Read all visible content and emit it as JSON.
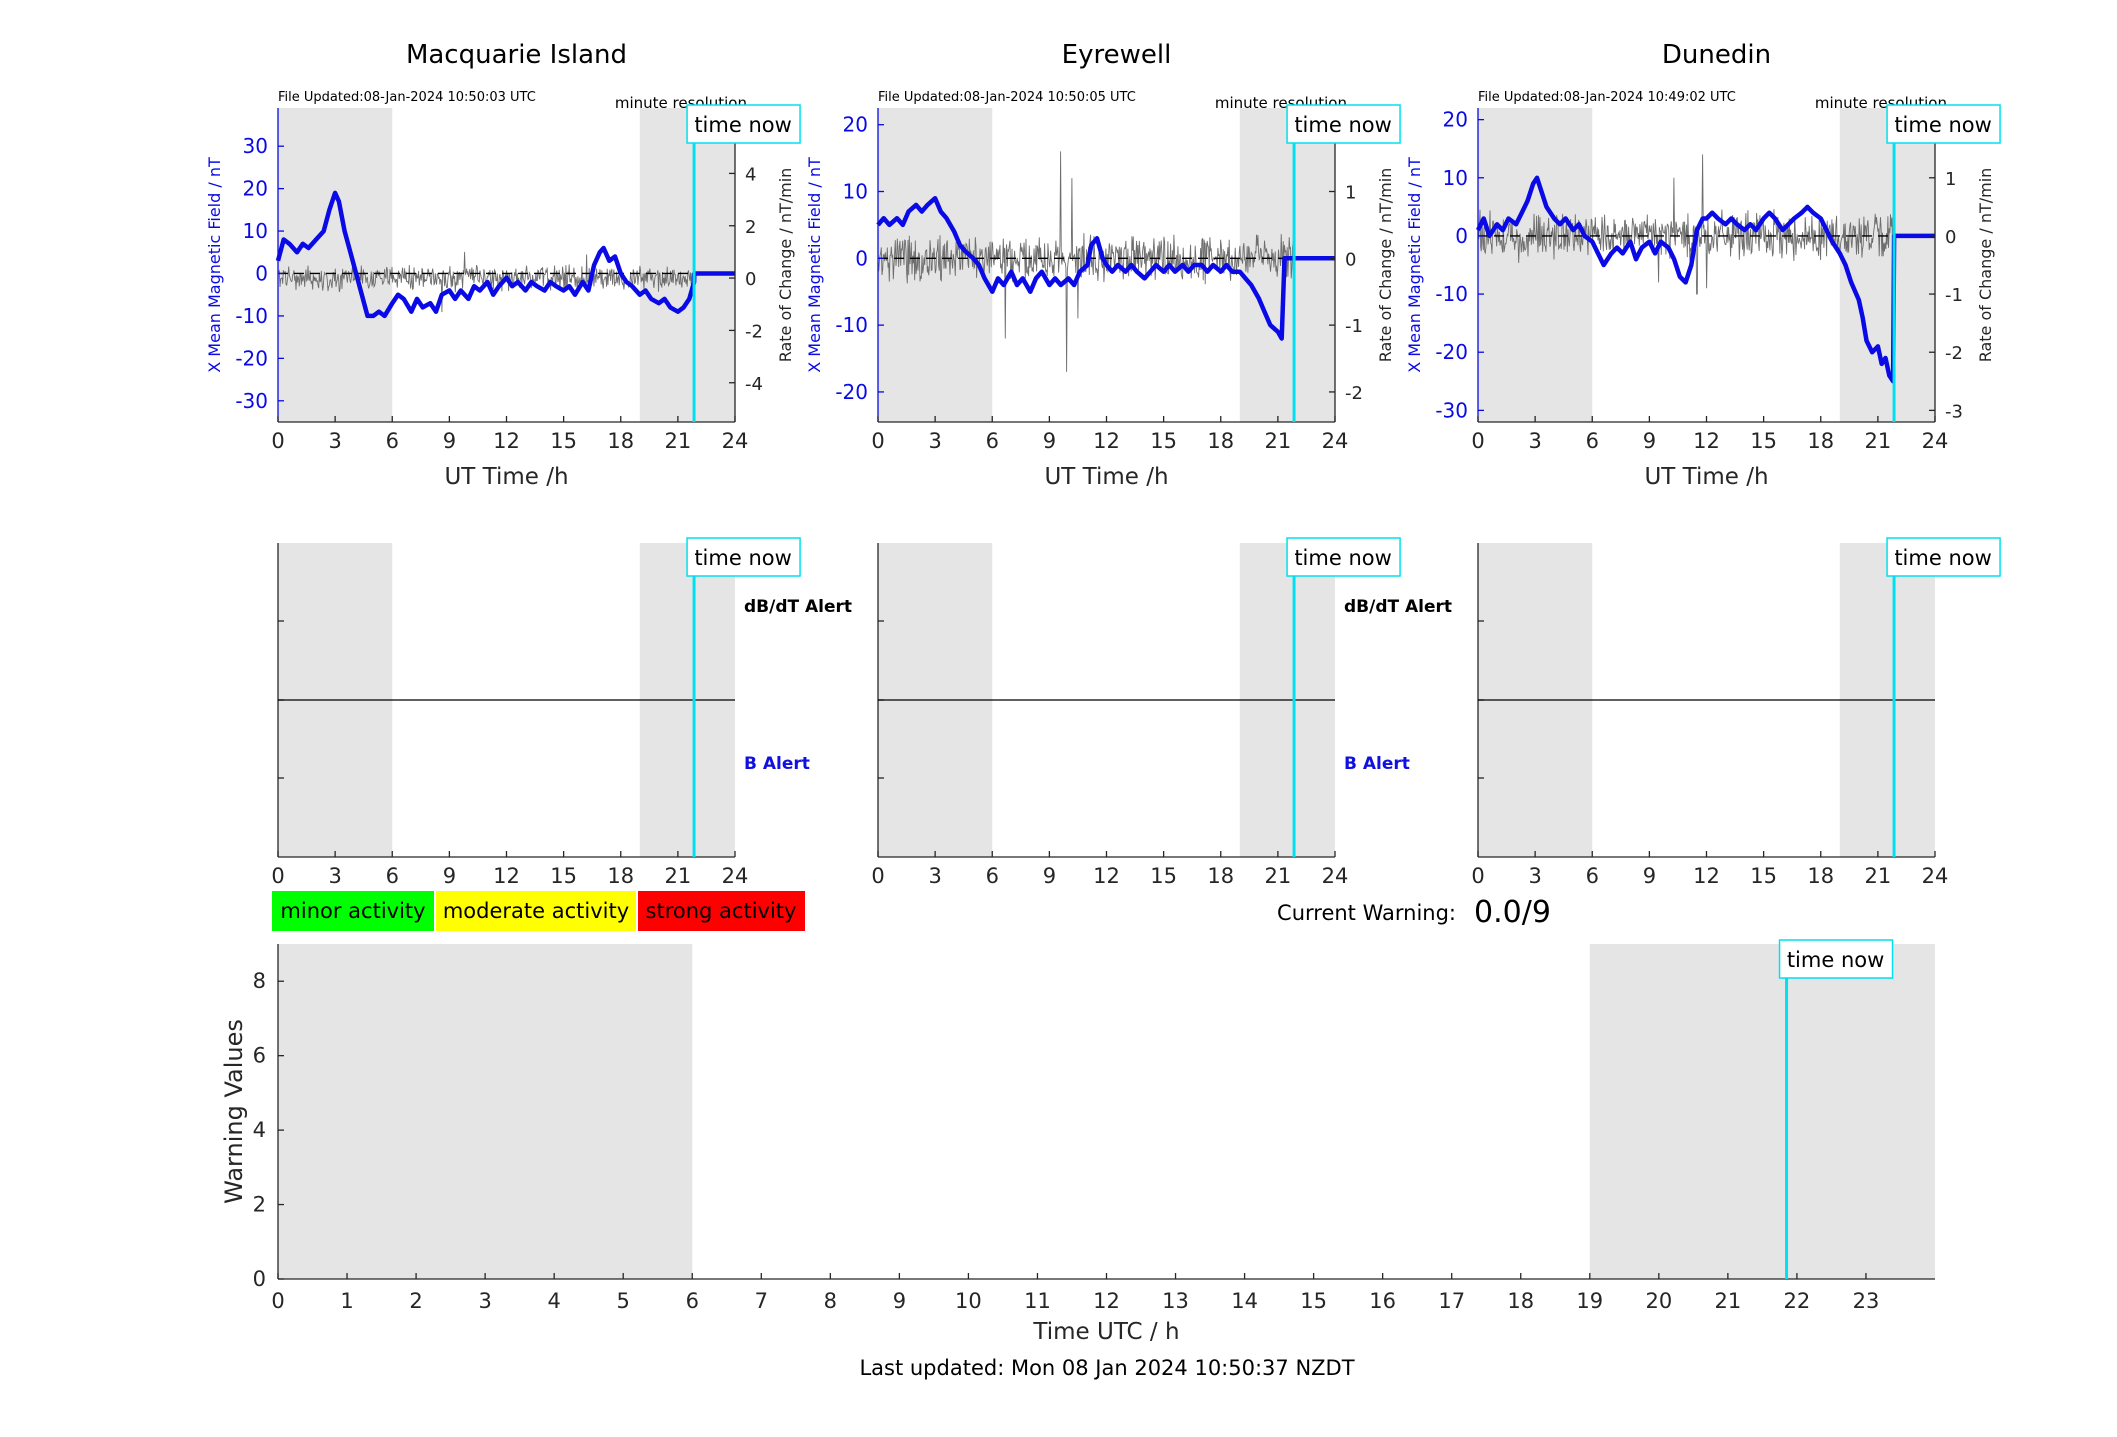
{
  "figure": {
    "last_updated": "Last updated: Mon 08 Jan 2024 10:50:37 NZDT"
  },
  "labels": {
    "time_now": "time now",
    "minute_resolution": "minute resolution",
    "ut_xlabel": "UT Time /h",
    "left_ylabel": "X Mean Magnetic Field / nT",
    "right_ylabel": "Rate of Change / nT/min",
    "dbdt_alert": "dB/dT Alert",
    "b_alert": "B Alert",
    "current_warning_label": "Current Warning:",
    "current_warning_value": "0.0/9"
  },
  "legend": [
    {
      "label": "minor activity",
      "color": "#00ff00"
    },
    {
      "label": "moderate activity",
      "color": "#ffff00"
    },
    {
      "label": "strong activity",
      "color": "#ff0000"
    }
  ],
  "colors": {
    "field": "#0a0ae6",
    "rate": "#6e6e6e",
    "time_now": "#00e0f0",
    "shade": "#e5e5e5",
    "alert_text": "#1010e0"
  },
  "chart_data": [
    {
      "type": "line",
      "title": "Macquarie Island",
      "file_updated": "File Updated:08-Jan-2024 10:50:03 UTC",
      "xlabel": "UT Time /h",
      "ylabel": "X Mean Magnetic Field / nT",
      "ylabel_right": "Rate of Change / nT/min",
      "xlim": [
        0,
        24
      ],
      "ylim": [
        -35,
        39
      ],
      "ylim_right": [
        -5.5,
        6.5
      ],
      "xticks": [
        0,
        3,
        6,
        9,
        12,
        15,
        18,
        21,
        24
      ],
      "yticks": [
        -30,
        -20,
        -10,
        0,
        10,
        20,
        30
      ],
      "yticks_right": [
        -4,
        -2,
        0,
        2,
        4,
        6
      ],
      "shaded_intervals": [
        [
          0,
          6
        ],
        [
          19,
          24
        ]
      ],
      "time_now": 21.85,
      "rate_noise": 0.35,
      "rate_spikes": [
        [
          8.6,
          -1.3
        ],
        [
          9.8,
          1.0
        ],
        [
          16.2,
          0.9
        ]
      ],
      "series": [
        {
          "values": [
            [
              0,
              3
            ],
            [
              0.3,
              8
            ],
            [
              0.6,
              7
            ],
            [
              1,
              5
            ],
            [
              1.3,
              7
            ],
            [
              1.6,
              6
            ],
            [
              2,
              8
            ],
            [
              2.4,
              10
            ],
            [
              2.7,
              15
            ],
            [
              3,
              19
            ],
            [
              3.2,
              17
            ],
            [
              3.5,
              10
            ],
            [
              3.8,
              5
            ],
            [
              4.1,
              0
            ],
            [
              4.4,
              -5
            ],
            [
              4.7,
              -10
            ],
            [
              5,
              -10
            ],
            [
              5.3,
              -9
            ],
            [
              5.6,
              -10
            ],
            [
              6,
              -7
            ],
            [
              6.3,
              -5
            ],
            [
              6.6,
              -6
            ],
            [
              7,
              -9
            ],
            [
              7.3,
              -6
            ],
            [
              7.6,
              -8
            ],
            [
              8,
              -7
            ],
            [
              8.3,
              -9
            ],
            [
              8.6,
              -5
            ],
            [
              9,
              -4
            ],
            [
              9.3,
              -6
            ],
            [
              9.6,
              -4
            ],
            [
              10,
              -6
            ],
            [
              10.3,
              -3
            ],
            [
              10.6,
              -4
            ],
            [
              11,
              -2
            ],
            [
              11.3,
              -5
            ],
            [
              11.6,
              -3
            ],
            [
              12,
              -1
            ],
            [
              12.3,
              -3
            ],
            [
              12.6,
              -2
            ],
            [
              13,
              -4
            ],
            [
              13.3,
              -2
            ],
            [
              13.6,
              -3
            ],
            [
              14,
              -4
            ],
            [
              14.3,
              -2
            ],
            [
              14.6,
              -3
            ],
            [
              15,
              -4
            ],
            [
              15.3,
              -3
            ],
            [
              15.6,
              -5
            ],
            [
              16,
              -2
            ],
            [
              16.3,
              -4
            ],
            [
              16.6,
              2
            ],
            [
              16.9,
              5
            ],
            [
              17.1,
              6
            ],
            [
              17.4,
              3
            ],
            [
              17.7,
              4
            ],
            [
              18,
              0
            ],
            [
              18.3,
              -2
            ],
            [
              18.6,
              -3
            ],
            [
              19,
              -5
            ],
            [
              19.3,
              -4
            ],
            [
              19.6,
              -6
            ],
            [
              20,
              -7
            ],
            [
              20.3,
              -6
            ],
            [
              20.6,
              -8
            ],
            [
              21,
              -9
            ],
            [
              21.3,
              -8
            ],
            [
              21.6,
              -6
            ],
            [
              21.85,
              -2
            ],
            [
              21.86,
              0
            ],
            [
              24,
              0
            ]
          ]
        }
      ]
    },
    {
      "type": "line",
      "title": "Eyrewell",
      "file_updated": "File Updated:08-Jan-2024 10:50:05 UTC",
      "xlabel": "UT Time /h",
      "ylabel": "X Mean Magnetic Field / nT",
      "ylabel_right": "Rate of Change / nT/min",
      "xlim": [
        0,
        24
      ],
      "ylim": [
        -24.5,
        22.5
      ],
      "ylim_right": [
        -2.45,
        2.25
      ],
      "xticks": [
        0,
        3,
        6,
        9,
        12,
        15,
        18,
        21,
        24
      ],
      "yticks": [
        -20,
        -10,
        0,
        10,
        20
      ],
      "yticks_right": [
        -2,
        -1,
        0,
        1,
        2
      ],
      "shaded_intervals": [
        [
          0,
          6
        ],
        [
          19,
          24
        ]
      ],
      "time_now": 21.85,
      "rate_noise": 0.25,
      "rate_spikes": [
        [
          6.7,
          -1.2
        ],
        [
          9.6,
          1.6
        ],
        [
          9.9,
          -1.7
        ],
        [
          10.2,
          1.2
        ],
        [
          10.5,
          -0.9
        ]
      ],
      "series": [
        {
          "values": [
            [
              0,
              5
            ],
            [
              0.3,
              6
            ],
            [
              0.6,
              5
            ],
            [
              1,
              6
            ],
            [
              1.3,
              5
            ],
            [
              1.6,
              7
            ],
            [
              2,
              8
            ],
            [
              2.3,
              7
            ],
            [
              2.6,
              8
            ],
            [
              3,
              9
            ],
            [
              3.3,
              7
            ],
            [
              3.6,
              6
            ],
            [
              4,
              4
            ],
            [
              4.3,
              2
            ],
            [
              4.6,
              1
            ],
            [
              5,
              0
            ],
            [
              5.3,
              -1
            ],
            [
              5.6,
              -3
            ],
            [
              6,
              -5
            ],
            [
              6.3,
              -3
            ],
            [
              6.6,
              -4
            ],
            [
              7,
              -2
            ],
            [
              7.3,
              -4
            ],
            [
              7.6,
              -3
            ],
            [
              8,
              -5
            ],
            [
              8.3,
              -3
            ],
            [
              8.6,
              -2
            ],
            [
              9,
              -4
            ],
            [
              9.3,
              -3
            ],
            [
              9.6,
              -4
            ],
            [
              10,
              -3
            ],
            [
              10.3,
              -4
            ],
            [
              10.6,
              -2
            ],
            [
              11,
              -1
            ],
            [
              11.2,
              2
            ],
            [
              11.5,
              3
            ],
            [
              11.8,
              0
            ],
            [
              12,
              -1
            ],
            [
              12.3,
              -2
            ],
            [
              12.6,
              -1
            ],
            [
              13,
              -2
            ],
            [
              13.3,
              -1
            ],
            [
              13.6,
              -2
            ],
            [
              14,
              -3
            ],
            [
              14.3,
              -2
            ],
            [
              14.6,
              -1
            ],
            [
              15,
              -2
            ],
            [
              15.3,
              -1
            ],
            [
              15.6,
              -2
            ],
            [
              16,
              -1
            ],
            [
              16.3,
              -2
            ],
            [
              16.6,
              -1
            ],
            [
              17,
              -1
            ],
            [
              17.3,
              -2
            ],
            [
              17.6,
              -1
            ],
            [
              18,
              -2
            ],
            [
              18.3,
              -1
            ],
            [
              18.6,
              -2
            ],
            [
              19,
              -2
            ],
            [
              19.3,
              -3
            ],
            [
              19.6,
              -4
            ],
            [
              20,
              -6
            ],
            [
              20.3,
              -8
            ],
            [
              20.6,
              -10
            ],
            [
              21,
              -11
            ],
            [
              21.2,
              -12
            ],
            [
              21.3,
              -4
            ],
            [
              21.35,
              0
            ],
            [
              24,
              0
            ]
          ]
        }
      ]
    },
    {
      "type": "line",
      "title": "Dunedin",
      "file_updated": "File Updated:08-Jan-2024 10:49:02 UTC",
      "xlabel": "UT Time /h",
      "ylabel": "X Mean Magnetic Field / nT",
      "ylabel_right": "Rate of Change / nT/min",
      "xlim": [
        0,
        24
      ],
      "ylim": [
        -32,
        22
      ],
      "ylim_right": [
        -3.2,
        2.2
      ],
      "xticks": [
        0,
        3,
        6,
        9,
        12,
        15,
        18,
        21,
        24
      ],
      "yticks": [
        -30,
        -20,
        -10,
        0,
        10,
        20
      ],
      "yticks_right": [
        -3,
        -2,
        -1,
        0,
        1,
        2
      ],
      "shaded_intervals": [
        [
          0,
          6
        ],
        [
          19,
          24
        ]
      ],
      "time_now": 21.85,
      "rate_noise": 0.3,
      "rate_spikes": [
        [
          9.5,
          -0.8
        ],
        [
          10.3,
          1.0
        ],
        [
          11.5,
          -1.0
        ],
        [
          11.8,
          1.4
        ],
        [
          12.0,
          -0.9
        ]
      ],
      "series": [
        {
          "values": [
            [
              0,
              1
            ],
            [
              0.3,
              3
            ],
            [
              0.6,
              0
            ],
            [
              1,
              2
            ],
            [
              1.3,
              1
            ],
            [
              1.6,
              3
            ],
            [
              2,
              2
            ],
            [
              2.3,
              4
            ],
            [
              2.6,
              6
            ],
            [
              2.9,
              9
            ],
            [
              3.1,
              10
            ],
            [
              3.3,
              8
            ],
            [
              3.6,
              5
            ],
            [
              4,
              3
            ],
            [
              4.3,
              2
            ],
            [
              4.6,
              3
            ],
            [
              5,
              1
            ],
            [
              5.3,
              2
            ],
            [
              5.6,
              0
            ],
            [
              6,
              -1
            ],
            [
              6.3,
              -3
            ],
            [
              6.6,
              -5
            ],
            [
              7,
              -3
            ],
            [
              7.3,
              -2
            ],
            [
              7.6,
              -3
            ],
            [
              8,
              -1
            ],
            [
              8.3,
              -4
            ],
            [
              8.6,
              -2
            ],
            [
              9,
              -1
            ],
            [
              9.3,
              -3
            ],
            [
              9.6,
              -1
            ],
            [
              10,
              -2
            ],
            [
              10.3,
              -4
            ],
            [
              10.6,
              -7
            ],
            [
              10.9,
              -8
            ],
            [
              11.2,
              -5
            ],
            [
              11.5,
              1
            ],
            [
              11.8,
              3
            ],
            [
              12,
              3
            ],
            [
              12.3,
              4
            ],
            [
              12.6,
              3
            ],
            [
              13,
              2
            ],
            [
              13.3,
              3
            ],
            [
              13.6,
              2
            ],
            [
              14,
              1
            ],
            [
              14.3,
              2
            ],
            [
              14.6,
              1
            ],
            [
              15,
              3
            ],
            [
              15.3,
              4
            ],
            [
              15.6,
              3
            ],
            [
              16,
              1
            ],
            [
              16.3,
              2
            ],
            [
              16.6,
              3
            ],
            [
              17,
              4
            ],
            [
              17.3,
              5
            ],
            [
              17.6,
              4
            ],
            [
              18,
              3
            ],
            [
              18.3,
              1
            ],
            [
              18.6,
              -1
            ],
            [
              19,
              -3
            ],
            [
              19.3,
              -5
            ],
            [
              19.6,
              -8
            ],
            [
              20,
              -11
            ],
            [
              20.2,
              -14
            ],
            [
              20.4,
              -18
            ],
            [
              20.7,
              -20
            ],
            [
              21,
              -19
            ],
            [
              21.2,
              -22
            ],
            [
              21.4,
              -21
            ],
            [
              21.6,
              -24
            ],
            [
              21.8,
              -25
            ],
            [
              21.85,
              0
            ],
            [
              24,
              0
            ]
          ]
        }
      ]
    },
    {
      "type": "line",
      "title": "",
      "xlabel": "Time UTC / h",
      "ylabel": "Warning Values",
      "xlim": [
        0,
        24
      ],
      "ylim": [
        0,
        9
      ],
      "xticks": [
        0,
        1,
        2,
        3,
        4,
        5,
        6,
        7,
        8,
        9,
        10,
        11,
        12,
        13,
        14,
        15,
        16,
        17,
        18,
        19,
        20,
        21,
        22,
        23
      ],
      "yticks": [
        0,
        2,
        4,
        6,
        8
      ],
      "shaded_intervals": [
        [
          0,
          6
        ],
        [
          19,
          24
        ]
      ],
      "time_now": 21.85,
      "series": []
    }
  ]
}
